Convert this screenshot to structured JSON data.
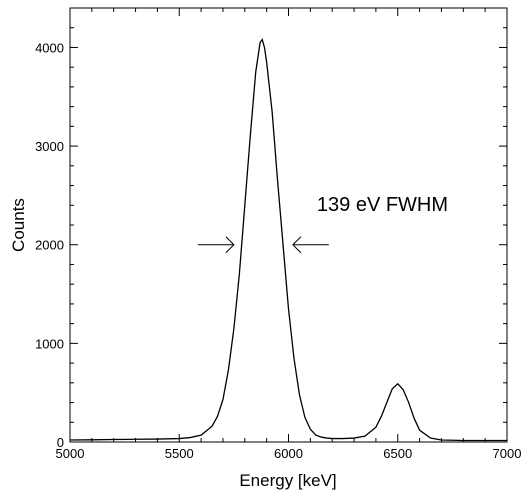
{
  "chart_data": {
    "type": "line",
    "title": "",
    "xlabel": "Energy [keV]",
    "ylabel": "Counts",
    "xlim": [
      5000,
      7000
    ],
    "ylim": [
      0,
      4400
    ],
    "grid": false,
    "x_ticks": [
      5000,
      5500,
      6000,
      6500,
      7000
    ],
    "y_ticks": [
      0,
      1000,
      2000,
      3000,
      4000
    ],
    "series": [
      {
        "x": [
          5000,
          5100,
          5200,
          5300,
          5400,
          5500,
          5550,
          5600,
          5650,
          5675,
          5700,
          5725,
          5750,
          5775,
          5800,
          5825,
          5850,
          5870,
          5880,
          5890,
          5900,
          5925,
          5950,
          5975,
          6000,
          6025,
          6050,
          6075,
          6100,
          6125,
          6150,
          6175,
          6200,
          6250,
          6300,
          6350,
          6400,
          6425,
          6450,
          6475,
          6500,
          6525,
          6550,
          6575,
          6600,
          6650,
          6700,
          6800,
          7000
        ],
        "y": [
          20,
          22,
          25,
          28,
          30,
          35,
          45,
          70,
          160,
          260,
          430,
          730,
          1150,
          1700,
          2400,
          3100,
          3750,
          4050,
          4080,
          4000,
          3850,
          3350,
          2650,
          2000,
          1350,
          850,
          480,
          250,
          130,
          70,
          50,
          40,
          35,
          35,
          40,
          60,
          150,
          260,
          400,
          540,
          590,
          530,
          400,
          240,
          120,
          40,
          20,
          15,
          15
        ]
      }
    ],
    "annotations": [
      {
        "text": "139 eV FWHM",
        "x": 6130,
        "y": 2340
      }
    ],
    "fwhm_arrows": {
      "y": 2000,
      "left_tip": 5750,
      "right_tip": 6020
    }
  }
}
